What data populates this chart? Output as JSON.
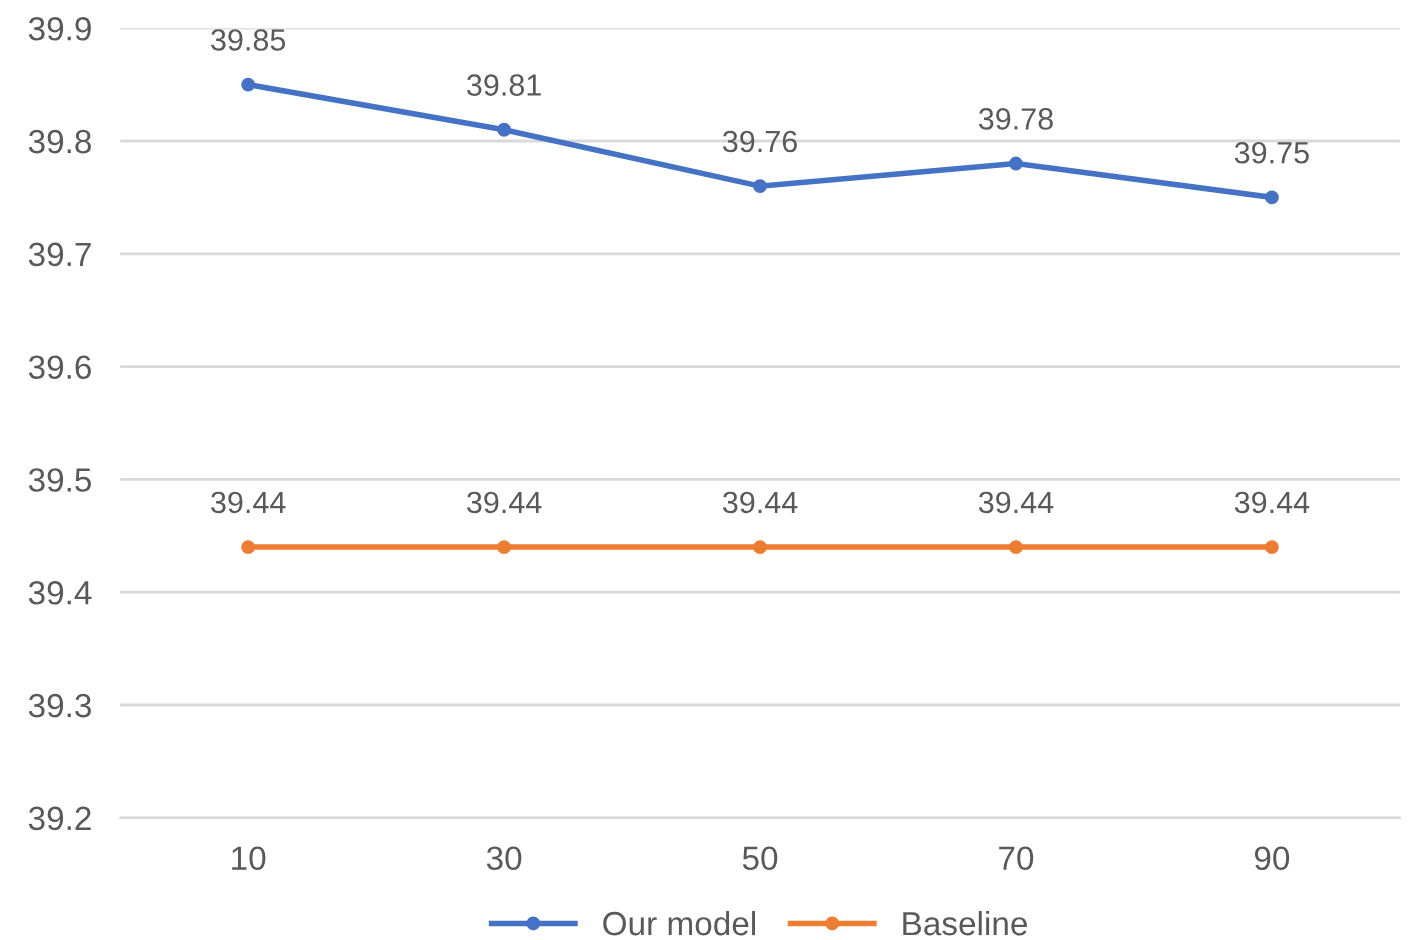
{
  "chart_data": {
    "type": "line",
    "categories": [
      "10",
      "30",
      "50",
      "70",
      "90"
    ],
    "series": [
      {
        "name": "Our model",
        "color": "#4472c4",
        "values": [
          39.85,
          39.81,
          39.76,
          39.78,
          39.75
        ]
      },
      {
        "name": "Baseline",
        "color": "#ed7d31",
        "values": [
          39.44,
          39.44,
          39.44,
          39.44,
          39.44
        ]
      }
    ],
    "ylim": [
      39.2,
      39.9
    ],
    "yticks": [
      39.2,
      39.3,
      39.4,
      39.5,
      39.6,
      39.7,
      39.8,
      39.9
    ],
    "grid": "y",
    "legend": "bottom",
    "marker": "circle",
    "line_style": "solid",
    "data_labels": true
  }
}
